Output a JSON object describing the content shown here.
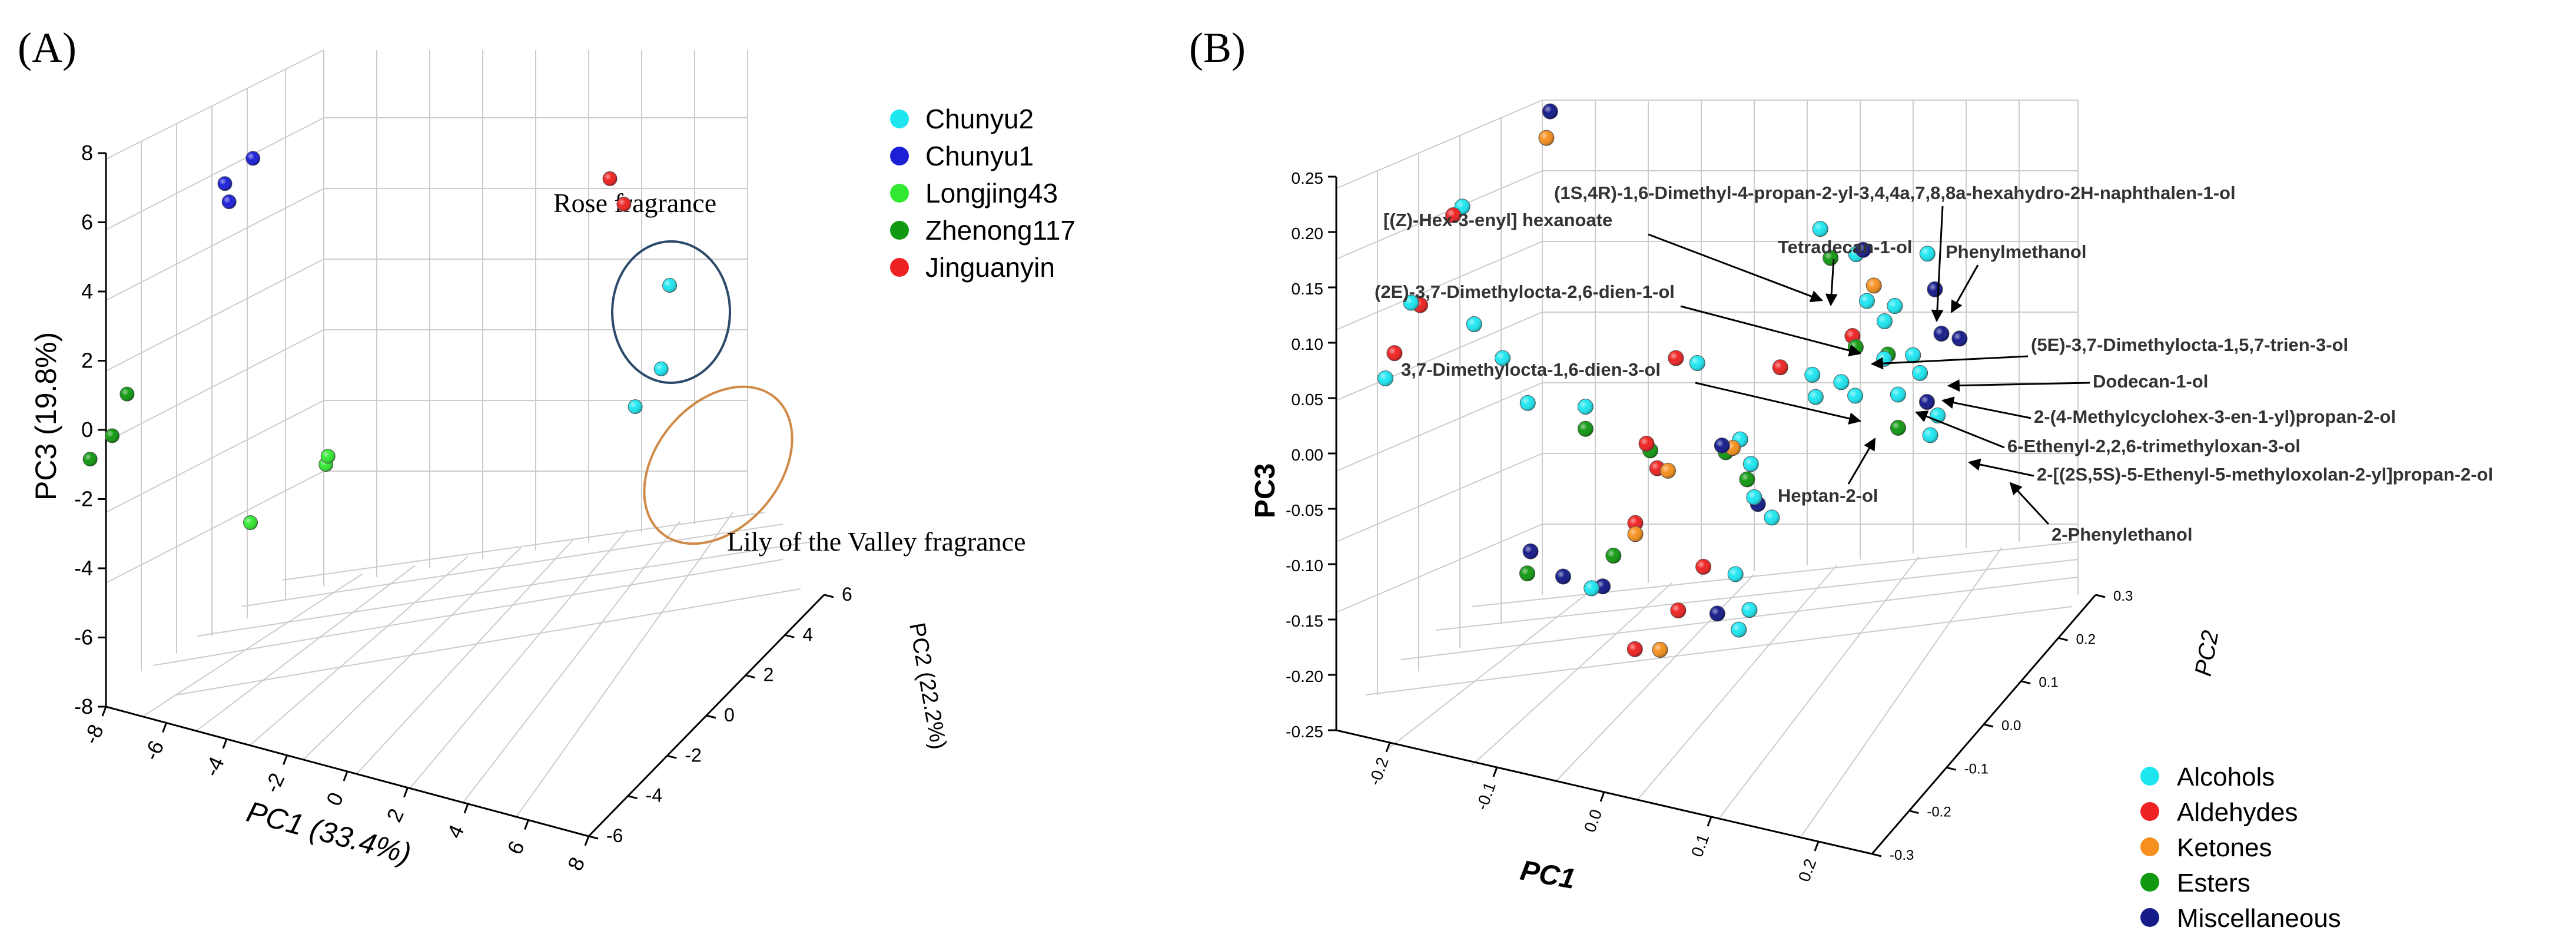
{
  "panels": [
    {
      "label": "(A)"
    },
    {
      "label": "(B)"
    }
  ],
  "chart_data": [
    {
      "type": "scatter",
      "projection": "3d",
      "xlabel": "PC1 (33.4%)",
      "ylabel": "PC2 (22.2%)",
      "zlabel": "PC3 (19.8%)",
      "xlim": [
        -8,
        8
      ],
      "ylim": [
        -6,
        6
      ],
      "zlim": [
        -8,
        8
      ],
      "x_ticks": [
        "-8",
        "-6",
        "-4",
        "-2",
        "0",
        "2",
        "4",
        "6",
        "8"
      ],
      "y_ticks": [
        "-6",
        "-4",
        "-2",
        "0",
        "2",
        "4",
        "6"
      ],
      "z_ticks": [
        "-8",
        "-6",
        "-4",
        "-2",
        "0",
        "2",
        "4",
        "6",
        "8"
      ],
      "grid": true,
      "legend_position": "top-right",
      "series": [
        {
          "name": "Chunyu2",
          "color": "#1ee6f0",
          "points": [
            [
              4.7,
              3.2,
              1.8
            ],
            [
              5.2,
              2.0,
              0.2
            ],
            [
              4.6,
              1.6,
              -0.8
            ]
          ]
        },
        {
          "name": "Chunyu1",
          "color": "#1c1fd6",
          "points": [
            [
              -5.6,
              -2.2,
              6.2
            ],
            [
              -6.4,
              -2.4,
              5.4
            ],
            [
              -6.0,
              -2.8,
              5.2
            ]
          ]
        },
        {
          "name": "Longjing43",
          "color": "#33e833",
          "points": [
            [
              -2.2,
              -3.6,
              -0.8
            ],
            [
              -2.4,
              -3.4,
              -1.2
            ],
            [
              -3.6,
              -5.4,
              -2.0
            ]
          ]
        },
        {
          "name": "Zhenong117",
          "color": "#119911",
          "points": [
            [
              -7.3,
              -6.0,
              1.2
            ],
            [
              -7.6,
              -6.3,
              0.1
            ],
            [
              -8.2,
              -6.5,
              -0.6
            ]
          ]
        },
        {
          "name": "Jinguanyin",
          "color": "#ee2222",
          "points": [
            [
              3.5,
              2.0,
              5.3
            ],
            [
              3.9,
              2.1,
              4.6
            ]
          ]
        }
      ],
      "annotations": [
        {
          "text": "Rose fragrance"
        },
        {
          "text": "Lily of the Valley fragrance"
        }
      ]
    },
    {
      "type": "scatter",
      "projection": "3d",
      "xlabel": "PC1",
      "ylabel": "PC2",
      "zlabel": "PC3",
      "xlim": [
        -0.25,
        0.25
      ],
      "ylim": [
        -0.3,
        0.3
      ],
      "zlim": [
        -0.25,
        0.25
      ],
      "x_ticks": [
        "-0.2",
        "-0.1",
        "0.0",
        "0.1",
        "0.2"
      ],
      "y_ticks": [
        "-0.3",
        "-0.2",
        "-0.1",
        "0.0",
        "0.1",
        "0.2",
        "0.3"
      ],
      "z_ticks": [
        "-0.25",
        "-0.20",
        "-0.15",
        "-0.10",
        "-0.05",
        "0.00",
        "0.05",
        "0.10",
        "0.15",
        "0.20",
        "0.25"
      ],
      "grid": true,
      "legend_position": "bottom-right",
      "series": [
        {
          "name": "Alcohols",
          "color": "#1ee6f0",
          "points": [
            [
              -0.195,
              -0.12,
              0.165
            ],
            [
              -0.215,
              -0.2,
              0.105
            ],
            [
              -0.225,
              -0.24,
              0.05
            ],
            [
              -0.17,
              -0.16,
              0.08
            ],
            [
              -0.14,
              -0.17,
              0.06
            ],
            [
              -0.12,
              -0.16,
              0.02
            ],
            [
              -0.08,
              -0.12,
              0.01
            ],
            [
              0.0,
              -0.05,
              0.04
            ],
            [
              0.09,
              0.0,
              0.03
            ],
            [
              0.1,
              -0.02,
              0.02
            ],
            [
              0.04,
              -0.05,
              -0.02
            ],
            [
              0.05,
              -0.05,
              -0.04
            ],
            [
              0.06,
              -0.07,
              -0.06
            ],
            [
              0.08,
              -0.08,
              -0.07
            ],
            [
              0.06,
              -0.12,
              -0.11
            ],
            [
              0.08,
              -0.14,
              -0.13
            ],
            [
              -0.05,
              -0.19,
              -0.12
            ],
            [
              0.07,
              -0.14,
              -0.15
            ],
            [
              0.08,
              0.05,
              0.14
            ],
            [
              0.11,
              0.06,
              0.12
            ],
            [
              0.12,
              0.06,
              0.08
            ],
            [
              0.14,
              0.05,
              0.07
            ],
            [
              0.15,
              0.02,
              0.05
            ],
            [
              0.17,
              0.04,
              0.05
            ],
            [
              0.18,
              0.03,
              0.04
            ],
            [
              0.17,
              0.0,
              0.03
            ],
            [
              0.2,
              0.02,
              0.01
            ],
            [
              0.2,
              0.0,
              0.0
            ],
            [
              0.18,
              0.05,
              0.14
            ],
            [
              0.16,
              0.02,
              0.1
            ],
            [
              0.11,
              0.02,
              0.02
            ],
            [
              0.13,
              0.0,
              0.02
            ]
          ]
        },
        {
          "name": "Aldehydes",
          "color": "#ee2222",
          "points": [
            [
              -0.2,
              -0.13,
              0.16
            ],
            [
              -0.21,
              -0.19,
              0.1
            ],
            [
              -0.22,
              -0.23,
              0.07
            ],
            [
              -0.02,
              -0.05,
              0.04
            ],
            [
              0.06,
              0.0,
              0.03
            ],
            [
              -0.03,
              -0.1,
              -0.02
            ],
            [
              -0.02,
              -0.1,
              -0.04
            ],
            [
              -0.03,
              -0.13,
              -0.08
            ],
            [
              0.01,
              -0.13,
              -0.15
            ],
            [
              0.03,
              -0.12,
              -0.11
            ],
            [
              -0.02,
              -0.16,
              -0.18
            ],
            [
              0.11,
              0.05,
              0.05
            ]
          ]
        },
        {
          "name": "Ketones",
          "color": "#f5901e",
          "points": [
            [
              -0.12,
              -0.11,
              0.24
            ],
            [
              0.04,
              -0.07,
              -0.02
            ],
            [
              -0.01,
              -0.1,
              -0.04
            ],
            [
              -0.03,
              -0.13,
              -0.09
            ],
            [
              0.0,
              -0.15,
              -0.18
            ],
            [
              0.13,
              0.05,
              0.1
            ]
          ]
        },
        {
          "name": "Esters",
          "color": "#119911",
          "points": [
            [
              -0.08,
              -0.12,
              -0.01
            ],
            [
              -0.03,
              -0.09,
              -0.03
            ],
            [
              0.03,
              -0.06,
              -0.03
            ],
            [
              0.05,
              -0.06,
              -0.05
            ],
            [
              0.1,
              0.02,
              0.13
            ],
            [
              0.12,
              0.03,
              0.05
            ],
            [
              0.15,
              0.03,
              0.05
            ],
            [
              0.17,
              0.0,
              0.0
            ],
            [
              -0.11,
              -0.19,
              -0.12
            ],
            [
              -0.04,
              -0.16,
              -0.1
            ]
          ]
        },
        {
          "name": "Miscellaneous",
          "color": "#141a8a",
          "points": [
            [
              -0.12,
              -0.1,
              0.26
            ],
            [
              0.03,
              -0.07,
              -0.02
            ],
            [
              0.06,
              -0.06,
              -0.07
            ],
            [
              -0.1,
              -0.21,
              -0.09
            ],
            [
              -0.08,
              -0.18,
              -0.12
            ],
            [
              -0.05,
              -0.16,
              -0.13
            ],
            [
              0.05,
              -0.14,
              -0.14
            ],
            [
              0.12,
              0.05,
              0.13
            ],
            [
              0.18,
              0.07,
              0.1
            ],
            [
              0.2,
              0.03,
              0.08
            ],
            [
              0.21,
              0.05,
              0.07
            ],
            [
              0.19,
              0.02,
              0.02
            ]
          ]
        }
      ],
      "annotations": [
        {
          "text": "(1S,4R)-1,6-Dimethyl-4-propan-2-yl-3,4,4a,7,8,8a-hexahydro-2H-naphthalen-1-ol"
        },
        {
          "text": "[(Z)-Hex-3-enyl] hexanoate"
        },
        {
          "text": "Tetradecan-1-ol"
        },
        {
          "text": "Phenylmethanol"
        },
        {
          "text": "(2E)-3,7-Dimethylocta-2,6-dien-1-ol"
        },
        {
          "text": "(5E)-3,7-Dimethylocta-1,5,7-trien-3-ol"
        },
        {
          "text": "3,7-Dimethylocta-1,6-dien-3-ol"
        },
        {
          "text": "Dodecan-1-ol"
        },
        {
          "text": "2-(4-Methylcyclohex-3-en-1-yl)propan-2-ol"
        },
        {
          "text": "6-Ethenyl-2,2,6-trimethyloxan-3-ol"
        },
        {
          "text": "Heptan-2-ol"
        },
        {
          "text": "2-[(2S,5S)-5-Ethenyl-5-methyloxolan-2-yl]propan-2-ol"
        },
        {
          "text": "2-Phenylethanol"
        }
      ]
    }
  ]
}
